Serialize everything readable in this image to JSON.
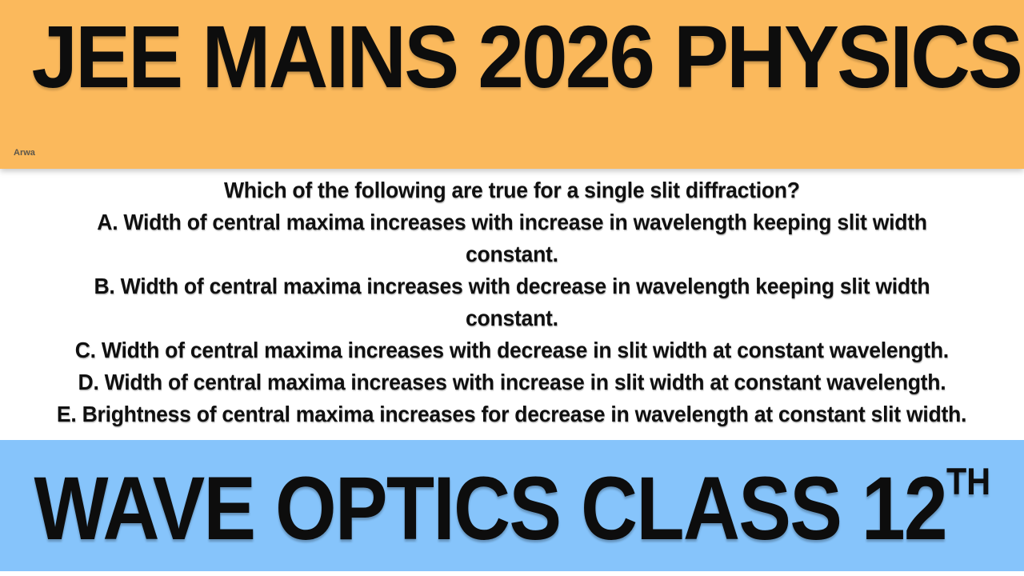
{
  "header": {
    "title": "JEE MAINS 2026 PHYSICS",
    "watermark": "Arwa",
    "background_color": "#FBB95C"
  },
  "question": {
    "lines": [
      "Which of the following are true for a single slit diffraction?",
      "A. Width of central maxima increases with increase in wavelength keeping slit width",
      "constant.",
      "B. Width of central maxima increases with decrease in wavelength keeping slit width",
      "constant.",
      "C. Width of central maxima increases with decrease in slit width at constant wavelength.",
      "D. Width of central maxima increases with increase in slit width at constant wavelength.",
      "E. Brightness of central maxima increases for decrease in wavelength at constant slit width."
    ]
  },
  "footer": {
    "title": "WAVE OPTICS CLASS 12",
    "superscript": "TH",
    "background_color": "#86C4FB"
  },
  "colors": {
    "banner_top": "#FBB95C",
    "banner_bottom": "#86C4FB",
    "text": "#0D0D0D",
    "background": "#FFFFFF"
  }
}
